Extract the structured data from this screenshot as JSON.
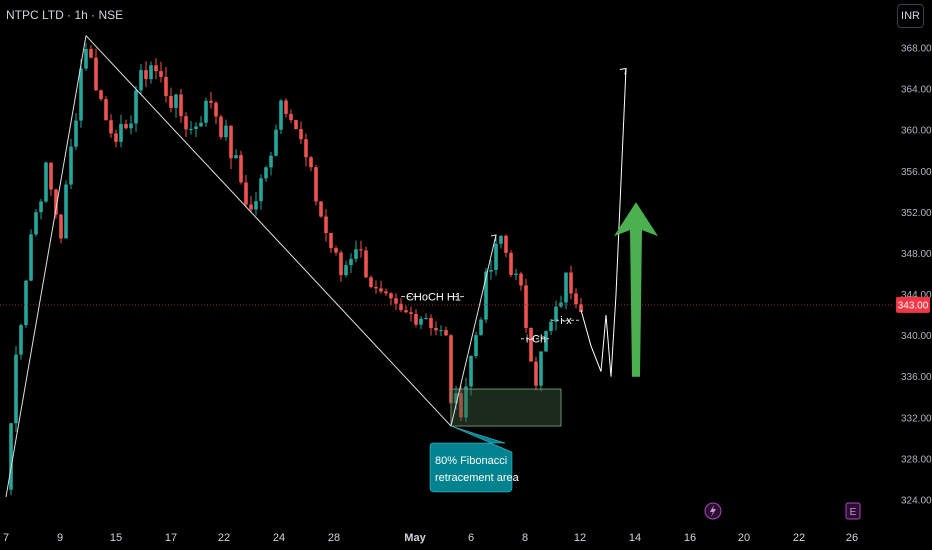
{
  "header": {
    "title": "NTPC LTD · 1h · NSE",
    "currency": "INR"
  },
  "colors": {
    "up": "#26a69a",
    "down": "#ef5350",
    "background": "#000000",
    "zone": "#3b5d3b",
    "arrow": "#4caf50",
    "callout": "#00838f",
    "price_tag": "#f23645",
    "event_icon": "#9c27b0"
  },
  "chart_data": {
    "type": "candlestick",
    "symbol": "NTPC LTD",
    "interval": "1h",
    "exchange": "NSE",
    "currency": "INR",
    "ylim": [
      322,
      370
    ],
    "y_ticks": [
      "324.00",
      "328.00",
      "332.00",
      "336.00",
      "340.00",
      "344.00",
      "348.00",
      "352.00",
      "356.00",
      "360.00",
      "364.00",
      "368.00"
    ],
    "x_ticks": [
      "7",
      "9",
      "15",
      "17",
      "22",
      "24",
      "28",
      "May",
      "6",
      "8",
      "12",
      "14",
      "16",
      "20",
      "22",
      "26"
    ],
    "last_price": "343.00",
    "path": [
      [
        0,
        325,
        0.0
      ],
      [
        2,
        338,
        0.9
      ],
      [
        5,
        350,
        0.9
      ],
      [
        8,
        356,
        0.8
      ],
      [
        11,
        350,
        0.9
      ],
      [
        15,
        366,
        0.9
      ],
      [
        16,
        368.5,
        0.8
      ],
      [
        20,
        361,
        0.9
      ],
      [
        24,
        359,
        0.9
      ],
      [
        26,
        364,
        0.8
      ],
      [
        29,
        366.5,
        0.8
      ],
      [
        33,
        363,
        0.9
      ],
      [
        37,
        360,
        0.9
      ],
      [
        41,
        363,
        0.8
      ],
      [
        45,
        358,
        1.0
      ],
      [
        49,
        352,
        1.0
      ],
      [
        52,
        356,
        0.9
      ],
      [
        55,
        363,
        0.8
      ],
      [
        57,
        362,
        0.8
      ],
      [
        60,
        357,
        0.9
      ],
      [
        64,
        350,
        0.9
      ],
      [
        67,
        346,
        0.8
      ],
      [
        70,
        349,
        0.8
      ],
      [
        74,
        344,
        0.8
      ],
      [
        79,
        342,
        0.7
      ],
      [
        84,
        342,
        0.7
      ],
      [
        88,
        339.5,
        0.8
      ],
      [
        89,
        334,
        0.9
      ],
      [
        91,
        333,
        0.7
      ],
      [
        96,
        345,
        0.9
      ],
      [
        99,
        349.5,
        0.9
      ],
      [
        103,
        344,
        0.8
      ],
      [
        106,
        336,
        0.9
      ],
      [
        108,
        340,
        0.8
      ],
      [
        110,
        342,
        0.8
      ],
      [
        112,
        345.5,
        0.7
      ],
      [
        115,
        343,
        0.6
      ]
    ],
    "swing_lines": [
      {
        "from": [
          0,
          324.3
        ],
        "to": [
          16,
          369.2
        ]
      },
      {
        "from": [
          16,
          369.2
        ],
        "to": [
          89,
          331.2
        ]
      },
      {
        "from": [
          89,
          331.2
        ],
        "to": [
          98,
          349.8
        ]
      }
    ],
    "retracement_zone": {
      "x_from": 89,
      "x_to": 111,
      "y_from": 331.2,
      "y_to": 334.8
    },
    "projection": [
      [
        115,
        342.5
      ],
      [
        117,
        339
      ],
      [
        119,
        336.5
      ],
      [
        120,
        342
      ],
      [
        121,
        336
      ],
      [
        122,
        344
      ],
      [
        124,
        366
      ]
    ],
    "target_arrow": {
      "x": 126,
      "tail": 336,
      "head": 353
    },
    "choch_level": {
      "label": "CHoCH H1",
      "price": 343.8,
      "x_from": 79,
      "x_to": 92
    },
    "ich_level": {
      "label": "i-Ch",
      "price": 339.7,
      "x_from": 103,
      "x_to": 109
    },
    "ix_level": {
      "label": "i-x",
      "price": 341.5,
      "x_from": 109,
      "x_to": 115
    },
    "callout": {
      "line1": "80% Fibonacci",
      "line2": "retracement area"
    },
    "event_markers": [
      "E"
    ]
  }
}
